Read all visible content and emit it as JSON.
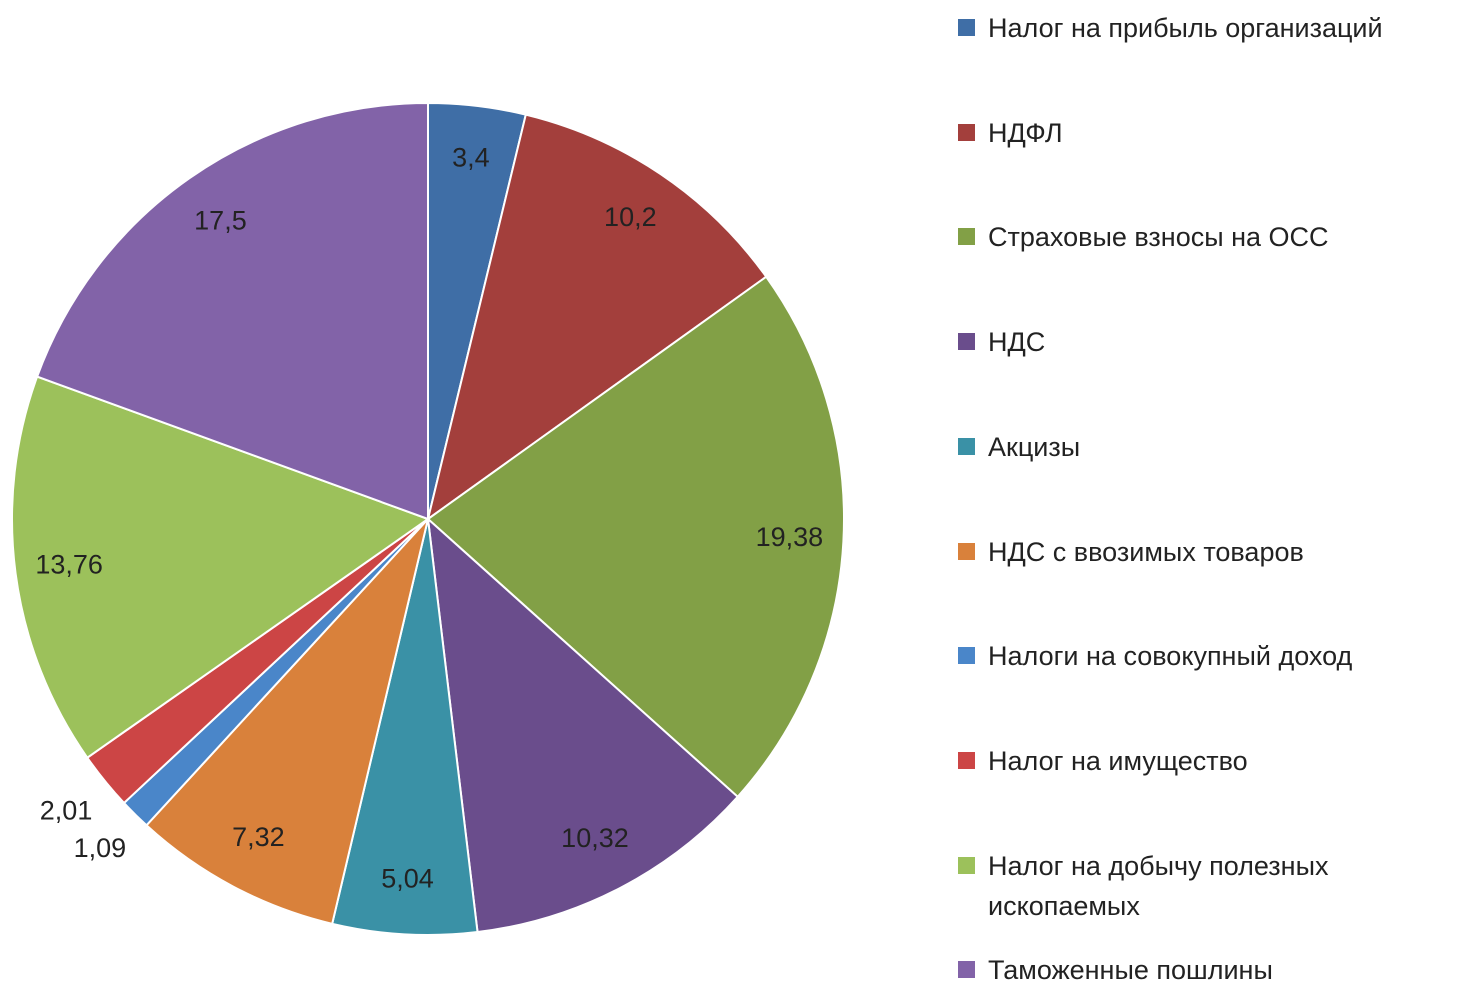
{
  "chart_data": {
    "type": "pie",
    "categories": [
      "Налог на прибыль организаций",
      "НДФЛ",
      "Страховые взносы на ОСС",
      "НДС",
      "Акцизы",
      "НДС с ввозимых товаров",
      "Налоги на совокупный доход",
      "Налог на имущество",
      "Налог на добычу полезных ископаемых",
      "Таможенные  пошлины"
    ],
    "values": [
      3.4,
      10.2,
      19.38,
      10.32,
      5.04,
      7.32,
      1.09,
      2.01,
      13.76,
      17.5
    ],
    "value_labels": [
      "3,4",
      "10,2",
      "19,38",
      "10,32",
      "5,04",
      "7,32",
      "1,09",
      "2,01",
      "13,76",
      "17,5"
    ],
    "colors": [
      "#3f6ea6",
      "#a33f3c",
      "#82a046",
      "#6a4d8c",
      "#3a91a6",
      "#d9813b",
      "#4a86c9",
      "#cc4545",
      "#9cc15b",
      "#8263a8"
    ],
    "legend": "right"
  }
}
